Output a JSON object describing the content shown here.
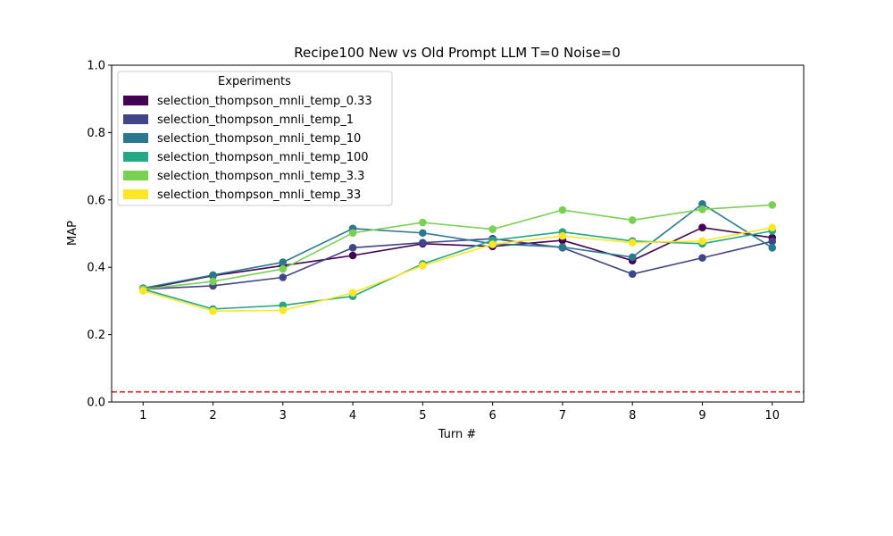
{
  "chart_data": {
    "type": "line",
    "title": "Recipe100 New vs Old Prompt LLM T=0 Noise=0",
    "xlabel": "Turn #",
    "ylabel": "MAP",
    "x": [
      1,
      2,
      3,
      4,
      5,
      6,
      7,
      8,
      9,
      10
    ],
    "xlim": [
      0.55,
      10.45
    ],
    "ylim": [
      0.0,
      1.0
    ],
    "yticks": [
      "0.0",
      "0.2",
      "0.4",
      "0.6",
      "0.8",
      "1.0"
    ],
    "xticks": [
      "1",
      "2",
      "3",
      "4",
      "5",
      "6",
      "7",
      "8",
      "9",
      "10"
    ],
    "grid": false,
    "legend": {
      "title": "Experiments",
      "placement": "upper-left"
    },
    "baseline": {
      "value": 0.03,
      "color": "#e41a1c",
      "style": "dashed"
    },
    "series": [
      {
        "name": "selection_thompson_mnli_temp_0.33",
        "color": "#440154",
        "values": [
          0.335,
          0.375,
          0.405,
          0.435,
          0.47,
          0.462,
          0.48,
          0.42,
          0.518,
          0.488
        ]
      },
      {
        "name": "selection_thompson_mnli_temp_1",
        "color": "#414487",
        "values": [
          0.335,
          0.345,
          0.37,
          0.458,
          0.473,
          0.485,
          0.458,
          0.38,
          0.428,
          0.477
        ]
      },
      {
        "name": "selection_thompson_mnli_temp_10",
        "color": "#2a788e",
        "values": [
          0.338,
          0.377,
          0.415,
          0.515,
          0.502,
          0.47,
          0.46,
          0.43,
          0.588,
          0.458
        ]
      },
      {
        "name": "selection_thompson_mnli_temp_100",
        "color": "#22a884",
        "values": [
          0.335,
          0.276,
          0.287,
          0.314,
          0.41,
          0.48,
          0.505,
          0.478,
          0.47,
          0.508
        ]
      },
      {
        "name": "selection_thompson_mnli_temp_3.3",
        "color": "#7ad151",
        "values": [
          0.335,
          0.358,
          0.395,
          0.502,
          0.533,
          0.513,
          0.57,
          0.54,
          0.572,
          0.585
        ]
      },
      {
        "name": "selection_thompson_mnli_temp_33",
        "color": "#fde725",
        "values": [
          0.33,
          0.27,
          0.272,
          0.324,
          0.405,
          0.468,
          0.493,
          0.473,
          0.478,
          0.518
        ]
      }
    ]
  }
}
